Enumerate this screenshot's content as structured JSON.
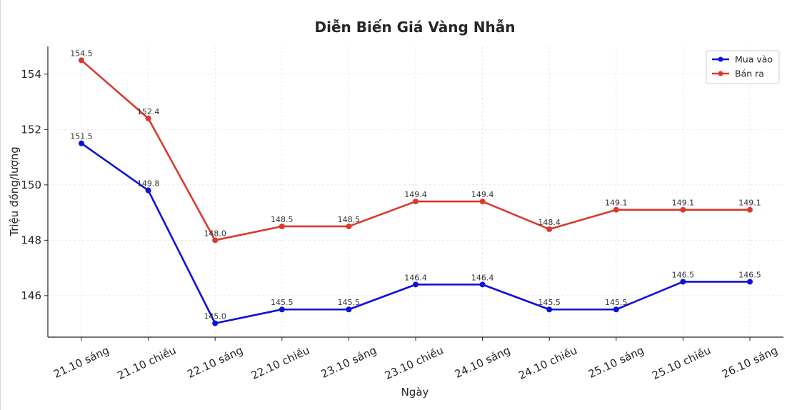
{
  "chart_data": {
    "type": "line",
    "title": "Diễn Biến Giá Vàng Nhẫn",
    "xlabel": "Ngày",
    "ylabel": "Triệu đồng/lượng",
    "categories": [
      "21.10 sáng",
      "21.10 chiều",
      "22.10 sáng",
      "22.10 chiều",
      "23.10 sáng",
      "23.10 chiều",
      "24.10 sáng",
      "24.10 chiều",
      "25.10 sáng",
      "25.10 chiều",
      "26.10 sáng"
    ],
    "ylim": [
      144.5,
      155.0
    ],
    "yticks": [
      146,
      148,
      150,
      152,
      154
    ],
    "grid": true,
    "legend_position": "top-right",
    "series": [
      {
        "name": "Mua vào",
        "color": "#1010d8",
        "values": [
          151.5,
          149.8,
          145.0,
          145.5,
          145.5,
          146.4,
          146.4,
          145.5,
          145.5,
          146.5,
          146.5
        ]
      },
      {
        "name": "Bán ra",
        "color": "#d93a2e",
        "values": [
          154.5,
          152.4,
          148.0,
          148.5,
          148.5,
          149.4,
          149.4,
          148.4,
          149.1,
          149.1,
          149.1
        ]
      }
    ]
  }
}
